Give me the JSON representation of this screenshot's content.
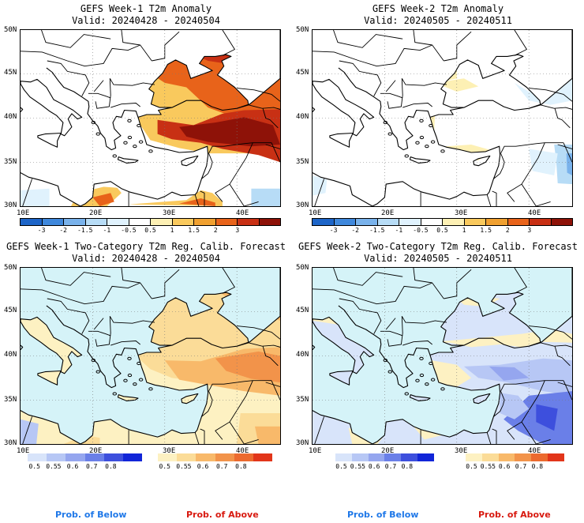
{
  "panels": [
    {
      "title": "GEFS Week-1 T2m Anomaly",
      "valid": "Valid: 20240428 - 20240504",
      "type": "anomaly",
      "scenario": "w1a"
    },
    {
      "title": "GEFS Week-2 T2m Anomaly",
      "valid": "Valid: 20240505 - 20240511",
      "type": "anomaly",
      "scenario": "w2a"
    },
    {
      "title": "GEFS Week-1 Two-Category T2m Reg. Calib. Forecast",
      "valid": "Valid: 20240428 - 20240504",
      "type": "prob",
      "scenario": "w1p"
    },
    {
      "title": "GEFS Week-2 Two-Category T2m Reg. Calib. Forecast",
      "valid": "Valid: 20240505 - 20240511",
      "type": "prob",
      "scenario": "w2p"
    }
  ],
  "lat_labels": [
    "50N",
    "45N",
    "40N",
    "35N",
    "30N"
  ],
  "lon_labels": [
    "10E",
    "20E",
    "30E",
    "40E"
  ],
  "anomaly_colorbar": {
    "ticks": [
      "-3",
      "-2",
      "-1.5",
      "-1",
      "-0.5",
      "0.5",
      "1",
      "1.5",
      "2",
      "3"
    ],
    "colors": [
      "#1d65c8",
      "#3f88dc",
      "#79b2eb",
      "#b7dcf6",
      "#e0f2fd",
      "#ffffff",
      "#fdf0b4",
      "#f9c95d",
      "#f0a030",
      "#e8631a",
      "#c83014",
      "#8e1208"
    ]
  },
  "prob_colorbars": {
    "below": {
      "ticks": [
        "0.5",
        "0.55",
        "0.6",
        "0.7",
        "0.8"
      ],
      "colors": [
        "#d8e4fa",
        "#b7c7f5",
        "#95a6ef",
        "#6a7fe8",
        "#3d4fdd",
        "#1125d8"
      ]
    },
    "above": {
      "ticks": [
        "0.5",
        "0.55",
        "0.6",
        "0.7",
        "0.8"
      ],
      "colors": [
        "#fdf1c2",
        "#fbdc98",
        "#f8b96a",
        "#f2934a",
        "#ec6a2f",
        "#e2351a"
      ]
    }
  },
  "prob_labels": {
    "below": "Prob. of Below",
    "above": "Prob. of Above"
  },
  "colors": {
    "ocean_prob": "#d5f3f8",
    "ocean_anom": "#ffffff",
    "below_text": "#1f78e8",
    "above_text": "#d81a10",
    "coast": "#000000"
  }
}
